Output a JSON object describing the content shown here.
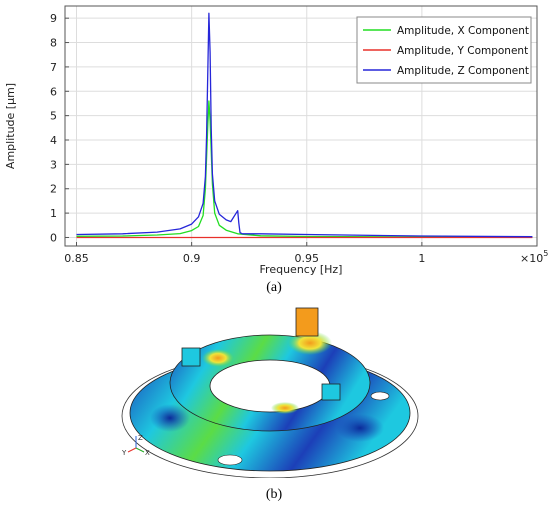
{
  "chart_data": {
    "type": "line",
    "xlabel": "Frequency [Hz]",
    "ylabel": "Amplitude [µm]",
    "x_multiplier_label": "×10",
    "x_multiplier_exp": "5",
    "xlim": [
      0.845,
      1.05
    ],
    "ylim": [
      -0.35,
      9.5
    ],
    "xticks": [
      {
        "value": 0.85,
        "label": "0.85"
      },
      {
        "value": 0.9,
        "label": "0.9"
      },
      {
        "value": 0.95,
        "label": "0.95"
      },
      {
        "value": 1.0,
        "label": "1"
      }
    ],
    "yticks": [
      0,
      1,
      2,
      3,
      4,
      5,
      6,
      7,
      8,
      9
    ],
    "grid": true,
    "legend_position": "top-right",
    "series": [
      {
        "name": "Amplitude, X Component",
        "color": "#22dd22",
        "x": [
          0.85,
          0.87,
          0.885,
          0.895,
          0.9,
          0.903,
          0.905,
          0.906,
          0.907,
          0.9075,
          0.908,
          0.909,
          0.91,
          0.912,
          0.915,
          0.92,
          0.93,
          0.95,
          1.0,
          1.048
        ],
        "y": [
          0.05,
          0.06,
          0.1,
          0.16,
          0.28,
          0.45,
          0.9,
          2.0,
          4.6,
          5.6,
          4.8,
          2.2,
          1.0,
          0.5,
          0.3,
          0.15,
          0.07,
          0.04,
          0.02,
          0.01
        ]
      },
      {
        "name": "Amplitude, Y Component",
        "color": "#e8302a",
        "x": [
          0.85,
          0.9,
          0.95,
          1.0,
          1.048
        ],
        "y": [
          0.0,
          0.0,
          0.0,
          0.0,
          0.0
        ]
      },
      {
        "name": "Amplitude, Z Component",
        "color": "#2626d9",
        "x": [
          0.85,
          0.87,
          0.885,
          0.895,
          0.9,
          0.903,
          0.905,
          0.906,
          0.9065,
          0.907,
          0.9075,
          0.908,
          0.9085,
          0.909,
          0.91,
          0.912,
          0.915,
          0.917,
          0.919,
          0.92,
          0.9205,
          0.921,
          0.922,
          0.93,
          0.95,
          1.0,
          1.048
        ],
        "y": [
          0.12,
          0.15,
          0.22,
          0.35,
          0.55,
          0.85,
          1.4,
          2.5,
          4.2,
          6.8,
          9.2,
          7.6,
          4.5,
          2.6,
          1.5,
          0.95,
          0.72,
          0.65,
          0.95,
          1.1,
          0.6,
          0.2,
          0.15,
          0.15,
          0.12,
          0.06,
          0.03
        ]
      }
    ]
  },
  "captions": {
    "a": "(a)",
    "b": "(b)"
  },
  "model_triad": {
    "z": "Z",
    "y": "Y",
    "x": "X"
  },
  "colors": {
    "model_blue": "#1c3fb8",
    "model_cyan": "#1ec8e0",
    "model_green": "#5bdc46",
    "model_yellow": "#f0e43a",
    "model_orange": "#f39b1c"
  }
}
